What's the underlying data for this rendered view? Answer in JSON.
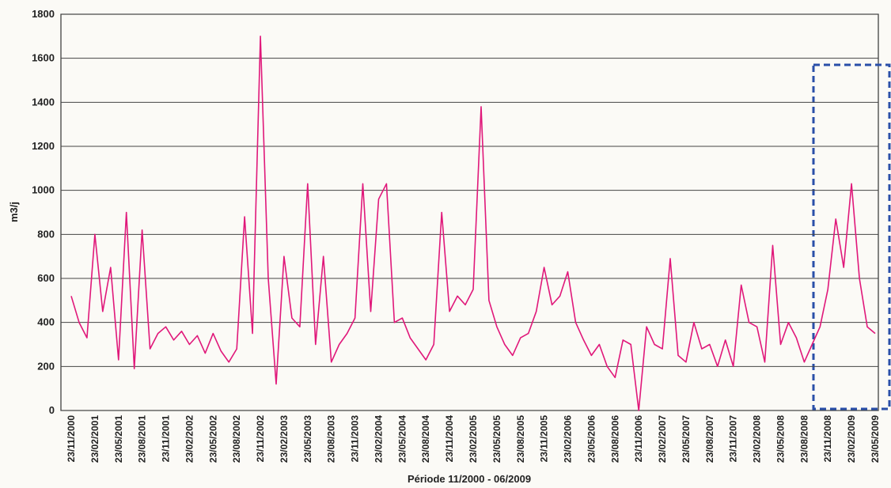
{
  "chart_data": {
    "type": "line",
    "y_label": "m3/j",
    "x_label": "Période 11/2000 - 06/2009",
    "color": "#e0187a",
    "grid": true,
    "ylim": [
      0,
      1800
    ],
    "yticks": [
      0,
      200,
      400,
      600,
      800,
      1000,
      1200,
      1400,
      1600,
      1800
    ],
    "categories": [
      "23/11/2000",
      null,
      null,
      "23/02/2001",
      null,
      null,
      "23/05/2001",
      null,
      null,
      "23/08/2001",
      null,
      null,
      "23/11/2001",
      null,
      null,
      "23/02/2002",
      null,
      null,
      "23/05/2002",
      null,
      null,
      "23/08/2002",
      null,
      null,
      "23/11/2002",
      null,
      null,
      "23/02/2003",
      null,
      null,
      "23/05/2003",
      null,
      null,
      "23/08/2003",
      null,
      null,
      "23/11/2003",
      null,
      null,
      "23/02/2004",
      null,
      null,
      "23/05/2004",
      null,
      null,
      "23/08/2004",
      null,
      null,
      "23/11/2004",
      null,
      null,
      "23/02/2005",
      null,
      null,
      "23/05/2005",
      null,
      null,
      "23/08/2005",
      null,
      null,
      "23/11/2005",
      null,
      null,
      "23/02/2006",
      null,
      null,
      "23/05/2006",
      null,
      null,
      "23/08/2006",
      null,
      null,
      "23/11/2006",
      null,
      null,
      "23/02/2007",
      null,
      null,
      "23/05/2007",
      null,
      null,
      "23/08/2007",
      null,
      null,
      "23/11/2007",
      null,
      null,
      "23/02/2008",
      null,
      null,
      "23/05/2008",
      null,
      null,
      "23/08/2008",
      null,
      null,
      "23/11/2008",
      null,
      null,
      "23/02/2009",
      null,
      null,
      "23/05/2009"
    ],
    "values": [
      520,
      400,
      330,
      800,
      450,
      650,
      230,
      900,
      190,
      820,
      280,
      350,
      380,
      320,
      360,
      300,
      340,
      260,
      350,
      270,
      220,
      280,
      880,
      350,
      1700,
      600,
      120,
      700,
      420,
      380,
      1030,
      300,
      700,
      220,
      300,
      350,
      420,
      1030,
      450,
      960,
      1030,
      400,
      420,
      330,
      280,
      230,
      300,
      900,
      450,
      520,
      480,
      550,
      1380,
      500,
      380,
      300,
      250,
      330,
      350,
      450,
      650,
      480,
      520,
      630,
      400,
      320,
      250,
      300,
      200,
      150,
      320,
      300,
      0,
      380,
      300,
      280,
      690,
      250,
      220,
      400,
      280,
      300,
      200,
      320,
      200,
      570,
      400,
      380,
      220,
      750,
      300,
      400,
      330,
      220,
      300,
      380,
      550,
      870,
      650,
      1030,
      600,
      380,
      350
    ]
  }
}
